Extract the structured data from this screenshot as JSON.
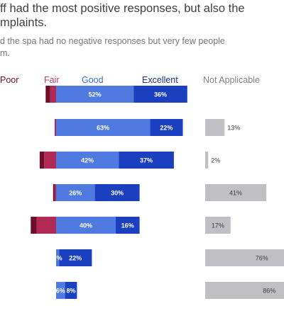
{
  "chart_data": {
    "type": "bar",
    "stacked": "diverging",
    "title": "ff had the most positive responses, but also the\nmplaints.",
    "subtitle": "d the spa had no negative responses but very few people\nm.",
    "legend": {
      "position": "top",
      "entries": [
        {
          "name": "Poor",
          "color": "#6e0f2a"
        },
        {
          "name": "Fair",
          "color": "#b02a55"
        },
        {
          "name": "Good",
          "color": "#4f7ae0"
        },
        {
          "name": "Excellent",
          "color": "#1a3fbf"
        },
        {
          "name": "Not Applicable",
          "color": "#bfbfc4"
        }
      ]
    },
    "rows": [
      {
        "poor": 3,
        "fair": 4,
        "good": 52,
        "excellent": 36,
        "not_applicable": 0,
        "labels": {
          "good": "52%",
          "excellent": "36%",
          "not_applicable": ""
        }
      },
      {
        "poor": 0,
        "fair": 1,
        "good": 63,
        "excellent": 22,
        "not_applicable": 13,
        "labels": {
          "good": "63%",
          "excellent": "22%",
          "not_applicable": "13%"
        }
      },
      {
        "poor": 3,
        "fair": 8,
        "good": 42,
        "excellent": 37,
        "not_applicable": 2,
        "labels": {
          "good": "42%",
          "excellent": "37%",
          "not_applicable": "2%"
        }
      },
      {
        "poor": 1,
        "fair": 1,
        "good": 26,
        "excellent": 30,
        "not_applicable": 41,
        "labels": {
          "good": "26%",
          "excellent": "30%",
          "not_applicable": "41%"
        }
      },
      {
        "poor": 4,
        "fair": 13,
        "good": 40,
        "excellent": 16,
        "not_applicable": 17,
        "labels": {
          "good": "40%",
          "excellent": "16%",
          "not_applicable": "17%"
        }
      },
      {
        "poor": 0,
        "fair": 0,
        "good": 2,
        "excellent": 22,
        "not_applicable": 76,
        "labels": {
          "good": "2%",
          "excellent": "22%",
          "not_applicable": "76%"
        }
      },
      {
        "poor": 0,
        "fair": 0,
        "good": 6,
        "excellent": 8,
        "not_applicable": 86,
        "labels": {
          "good": "6%",
          "excellent": "8%",
          "not_applicable": "86%"
        }
      }
    ]
  }
}
